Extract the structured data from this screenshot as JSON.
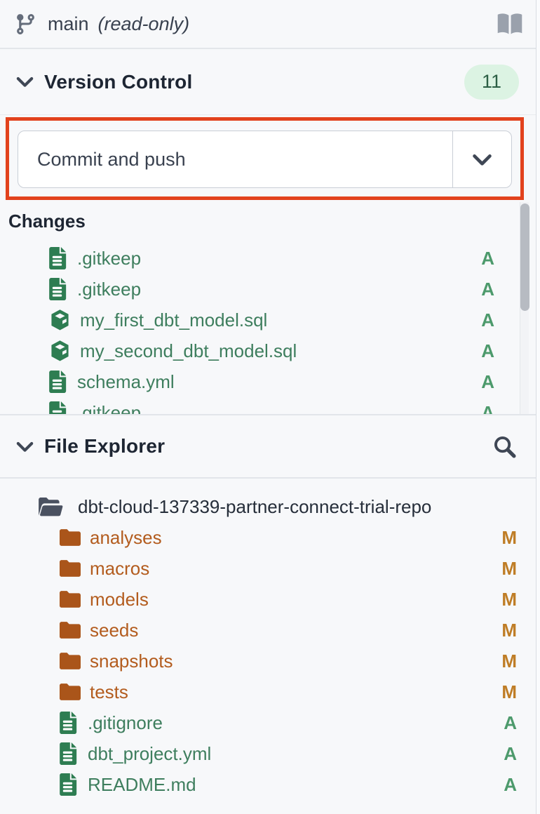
{
  "topbar": {
    "branch": "main",
    "mode": "(read-only)"
  },
  "version_control": {
    "title": "Version Control",
    "badge": "11",
    "action_button": {
      "label": "Commit and push"
    },
    "changes": {
      "title": "Changes",
      "items": [
        {
          "name": ".gitkeep",
          "icon": "file-icon",
          "status": "A"
        },
        {
          "name": ".gitkeep",
          "icon": "file-icon",
          "status": "A"
        },
        {
          "name": "my_first_dbt_model.sql",
          "icon": "model-icon",
          "status": "A"
        },
        {
          "name": "my_second_dbt_model.sql",
          "icon": "model-icon",
          "status": "A"
        },
        {
          "name": "schema.yml",
          "icon": "file-icon",
          "status": "A"
        },
        {
          "name": ".gitkeep",
          "icon": "file-icon",
          "status": "A"
        }
      ]
    }
  },
  "file_explorer": {
    "title": "File Explorer",
    "root": {
      "name": "dbt-cloud-137339-partner-connect-trial-repo",
      "icon": "open-folder-icon"
    },
    "items": [
      {
        "name": "analyses",
        "icon": "folder-icon",
        "status": "M"
      },
      {
        "name": "macros",
        "icon": "folder-icon",
        "status": "M"
      },
      {
        "name": "models",
        "icon": "folder-icon",
        "status": "M"
      },
      {
        "name": "seeds",
        "icon": "folder-icon",
        "status": "M"
      },
      {
        "name": "snapshots",
        "icon": "folder-icon",
        "status": "M"
      },
      {
        "name": "tests",
        "icon": "folder-icon",
        "status": "M"
      },
      {
        "name": ".gitignore",
        "icon": "file-icon",
        "status": "A"
      },
      {
        "name": "dbt_project.yml",
        "icon": "file-icon",
        "status": "A"
      },
      {
        "name": "README.md",
        "icon": "file-icon",
        "status": "A"
      }
    ]
  },
  "colors": {
    "accent_red": "#e2421d",
    "green_icon": "#2e7d52",
    "green_text": "#3e7e5e",
    "status_add": "#4d9a6c",
    "orange_icon": "#aa551a",
    "orange_text": "#b35c1e",
    "status_mod": "#bf7d26",
    "badge_bg": "#dcf3e3",
    "badge_text": "#2c5f45",
    "panel_bg": "#f7f8fa"
  }
}
